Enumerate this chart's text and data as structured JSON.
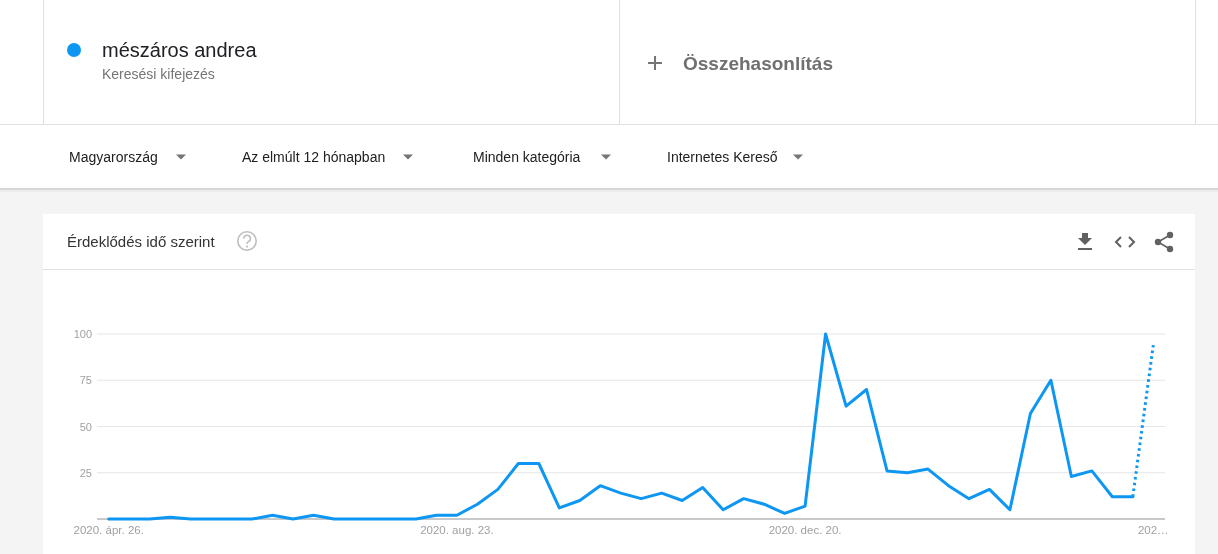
{
  "chart_data": {
    "type": "line",
    "title": "Érdeklődés idő szerint",
    "annotations": [
      "Keresési kifejezés",
      "Összehasonlítás",
      "Magyarország",
      "Az elmúlt 12 hónapban",
      "Minden kategória",
      "Internetes Kereső"
    ],
    "x": [
      "2020-04-26",
      "2020-05-03",
      "2020-05-10",
      "2020-05-17",
      "2020-05-24",
      "2020-05-31",
      "2020-06-07",
      "2020-06-14",
      "2020-06-21",
      "2020-06-28",
      "2020-07-05",
      "2020-07-12",
      "2020-07-19",
      "2020-07-26",
      "2020-08-02",
      "2020-08-09",
      "2020-08-16",
      "2020-08-23",
      "2020-08-30",
      "2020-09-06",
      "2020-09-13",
      "2020-09-20",
      "2020-09-27",
      "2020-10-04",
      "2020-10-11",
      "2020-10-18",
      "2020-10-25",
      "2020-11-01",
      "2020-11-08",
      "2020-11-15",
      "2020-11-22",
      "2020-11-29",
      "2020-12-06",
      "2020-12-13",
      "2020-12-20",
      "2020-12-27",
      "2021-01-03",
      "2021-01-10",
      "2021-01-17",
      "2021-01-24",
      "2021-01-31",
      "2021-02-07",
      "2021-02-14",
      "2021-02-21",
      "2021-02-28",
      "2021-03-07",
      "2021-03-14",
      "2021-03-21",
      "2021-03-28",
      "2021-04-04",
      "2021-04-11",
      "2021-04-18"
    ],
    "series": [
      {
        "name": "mészáros andrea",
        "color": "#0d96f2",
        "line_style": "solid",
        "values": [
          0,
          0,
          0,
          1,
          0,
          0,
          0,
          0,
          2,
          0,
          2,
          0,
          0,
          0,
          0,
          0,
          2,
          2,
          8,
          16,
          30,
          30,
          6,
          10,
          18,
          14,
          11,
          14,
          10,
          17,
          5,
          11,
          8,
          3,
          7,
          100,
          61,
          70,
          26,
          25,
          27,
          18,
          11,
          16,
          5,
          57,
          75,
          23,
          26,
          12,
          12,
          null
        ]
      },
      {
        "color": "#0d96f2",
        "line_style": "dotted",
        "values": [
          null,
          null,
          null,
          null,
          null,
          null,
          null,
          null,
          null,
          null,
          null,
          null,
          null,
          null,
          null,
          null,
          null,
          null,
          null,
          null,
          null,
          null,
          null,
          null,
          null,
          null,
          null,
          null,
          null,
          null,
          null,
          null,
          null,
          null,
          null,
          null,
          null,
          null,
          null,
          null,
          null,
          null,
          null,
          null,
          null,
          null,
          null,
          null,
          null,
          null,
          12,
          94
        ]
      }
    ],
    "xlim": [
      "2020-04-22",
      "2021-04-22"
    ],
    "xticks": [
      {
        "value": "2020-04-26",
        "label": "2020. ápr. 26."
      },
      {
        "value": "2020-08-23",
        "label": "2020. aug. 23."
      },
      {
        "value": "2020-12-20",
        "label": "2020. dec. 20."
      },
      {
        "value": "2021-04-18",
        "label": "202…"
      }
    ],
    "ylim": [
      0,
      100
    ],
    "yticks": [
      {
        "value": 0,
        "label": null
      },
      25,
      50,
      75,
      100
    ],
    "grid": "y",
    "legend": "top left"
  }
}
